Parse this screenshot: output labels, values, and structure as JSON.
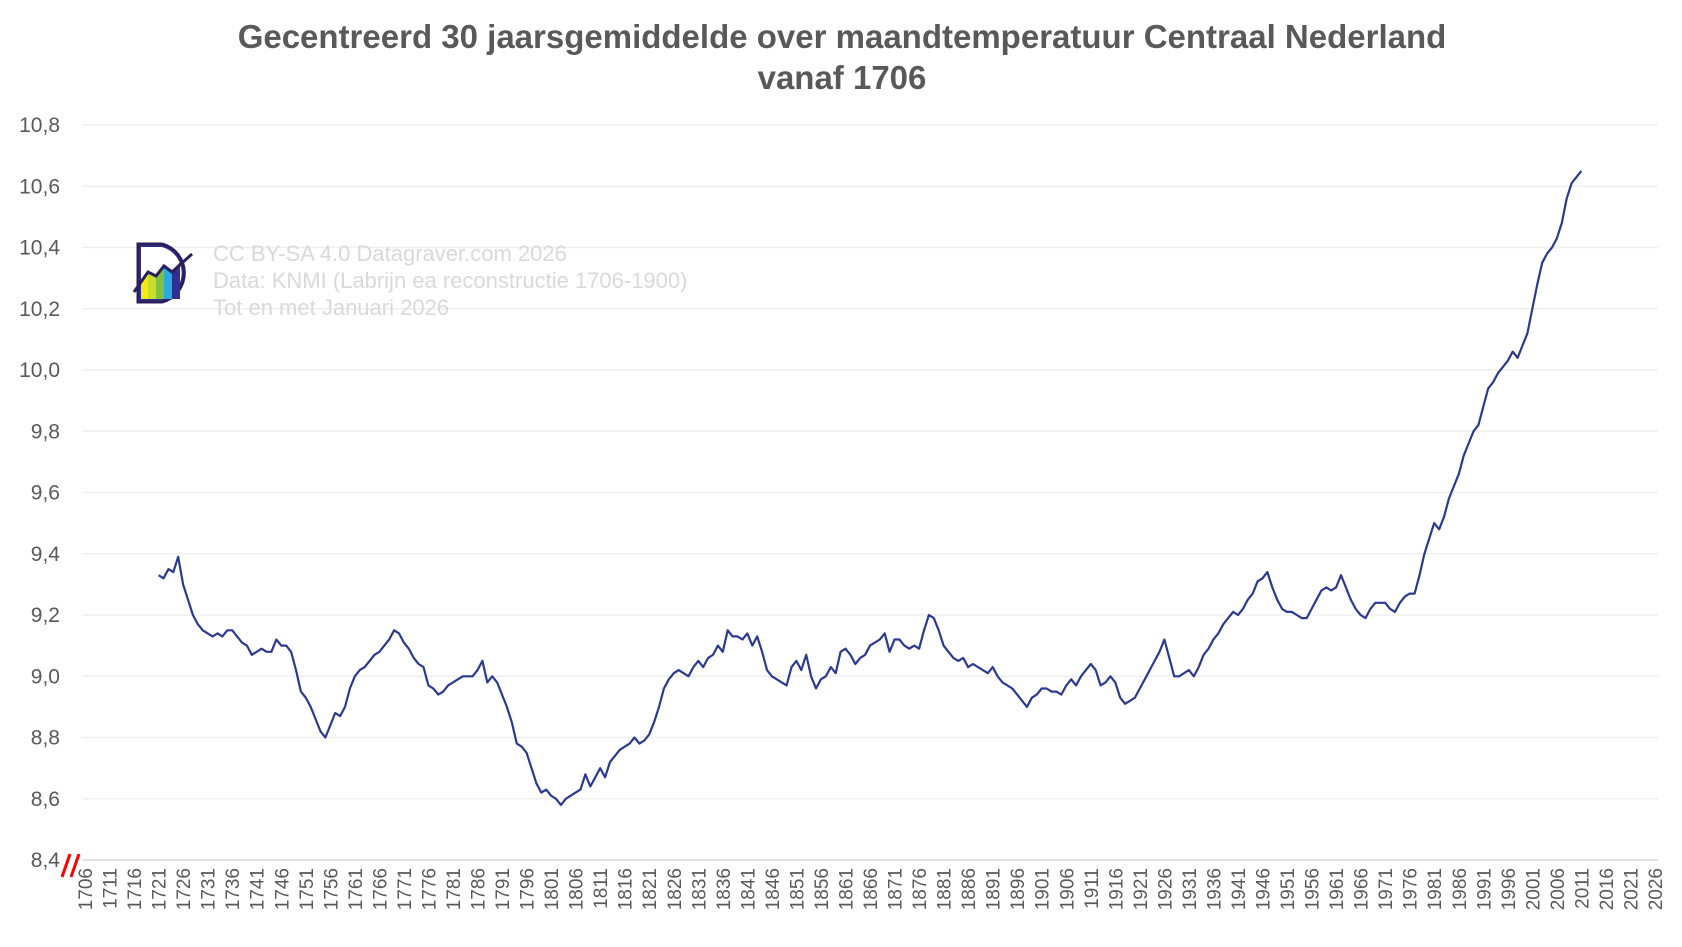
{
  "chart_data": {
    "type": "line",
    "title": "Gecentreerd 30 jaarsgemiddelde over maandtemperatuur Centraal Nederland",
    "subtitle": "vanaf 1706",
    "xlabel": "",
    "ylabel": "",
    "ylim": [
      8.4,
      10.8
    ],
    "xlim": [
      1706,
      2026
    ],
    "y_ticks": [
      "8,4",
      "8,6",
      "8,8",
      "9,0",
      "9,2",
      "9,4",
      "9,6",
      "9,8",
      "10,0",
      "10,2",
      "10,4",
      "10,6",
      "10,8"
    ],
    "x_tick_start": 1706,
    "x_tick_step": 5,
    "x_tick_end": 2026,
    "grid": "horizontal",
    "axis_break": true,
    "line_color": "#2b3990",
    "axis_break_color": "#ff0000",
    "series": [
      {
        "x_start": 1721,
        "x_end": 2011,
        "values": [
          9.33,
          9.32,
          9.35,
          9.34,
          9.39,
          9.3,
          9.25,
          9.2,
          9.17,
          9.15,
          9.14,
          9.13,
          9.14,
          9.13,
          9.15,
          9.15,
          9.13,
          9.11,
          9.1,
          9.07,
          9.08,
          9.09,
          9.08,
          9.08,
          9.12,
          9.1,
          9.1,
          9.08,
          9.02,
          8.95,
          8.93,
          8.9,
          8.86,
          8.82,
          8.8,
          8.84,
          8.88,
          8.87,
          8.9,
          8.96,
          9.0,
          9.02,
          9.03,
          9.05,
          9.07,
          9.08,
          9.1,
          9.12,
          9.15,
          9.14,
          9.11,
          9.09,
          9.06,
          9.04,
          9.03,
          8.97,
          8.96,
          8.94,
          8.95,
          8.97,
          8.98,
          8.99,
          9.0,
          9.0,
          9.0,
          9.02,
          9.05,
          8.98,
          9.0,
          8.98,
          8.94,
          8.9,
          8.85,
          8.78,
          8.77,
          8.75,
          8.7,
          8.65,
          8.62,
          8.63,
          8.61,
          8.6,
          8.58,
          8.6,
          8.61,
          8.62,
          8.63,
          8.68,
          8.64,
          8.67,
          8.7,
          8.67,
          8.72,
          8.74,
          8.76,
          8.77,
          8.78,
          8.8,
          8.78,
          8.79,
          8.81,
          8.85,
          8.9,
          8.96,
          8.99,
          9.01,
          9.02,
          9.01,
          9.0,
          9.03,
          9.05,
          9.03,
          9.06,
          9.07,
          9.1,
          9.08,
          9.15,
          9.13,
          9.13,
          9.12,
          9.14,
          9.1,
          9.13,
          9.08,
          9.02,
          9.0,
          8.99,
          8.98,
          8.97,
          9.03,
          9.05,
          9.02,
          9.07,
          9.0,
          8.96,
          8.99,
          9.0,
          9.03,
          9.01,
          9.08,
          9.09,
          9.07,
          9.04,
          9.06,
          9.07,
          9.1,
          9.11,
          9.12,
          9.14,
          9.08,
          9.12,
          9.12,
          9.1,
          9.09,
          9.1,
          9.09,
          9.15,
          9.2,
          9.19,
          9.15,
          9.1,
          9.08,
          9.06,
          9.05,
          9.06,
          9.03,
          9.04,
          9.03,
          9.02,
          9.01,
          9.03,
          9.0,
          8.98,
          8.97,
          8.96,
          8.94,
          8.92,
          8.9,
          8.93,
          8.94,
          8.96,
          8.96,
          8.95,
          8.95,
          8.94,
          8.97,
          8.99,
          8.97,
          9.0,
          9.02,
          9.04,
          9.02,
          8.97,
          8.98,
          9.0,
          8.98,
          8.93,
          8.91,
          8.92,
          8.93,
          8.96,
          8.99,
          9.02,
          9.05,
          9.08,
          9.12,
          9.06,
          9.0,
          9.0,
          9.01,
          9.02,
          9.0,
          9.03,
          9.07,
          9.09,
          9.12,
          9.14,
          9.17,
          9.19,
          9.21,
          9.2,
          9.22,
          9.25,
          9.27,
          9.31,
          9.32,
          9.34,
          9.29,
          9.25,
          9.22,
          9.21,
          9.21,
          9.2,
          9.19,
          9.19,
          9.22,
          9.25,
          9.28,
          9.29,
          9.28,
          9.29,
          9.33,
          9.29,
          9.25,
          9.22,
          9.2,
          9.19,
          9.22,
          9.24,
          9.24,
          9.24,
          9.22,
          9.21,
          9.24,
          9.26,
          9.27,
          9.27,
          9.33,
          9.4,
          9.45,
          9.5,
          9.48,
          9.52,
          9.58,
          9.62,
          9.66,
          9.72,
          9.76,
          9.8,
          9.82,
          9.88,
          9.94,
          9.96,
          9.99,
          10.01,
          10.03,
          10.06,
          10.04,
          10.08,
          10.12,
          10.2,
          10.28,
          10.35,
          10.38,
          10.4,
          10.43,
          10.48,
          10.56,
          10.61,
          10.63,
          10.65
        ]
      }
    ]
  },
  "watermark": {
    "line1": "CC BY-SA 4.0 Datagraver.com 2026",
    "line2": "Data: KNMI (Labrijn ea reconstructie 1706-1900)",
    "line3": "Tot en met Januari 2026",
    "logo": "Datagraver D-logo"
  }
}
